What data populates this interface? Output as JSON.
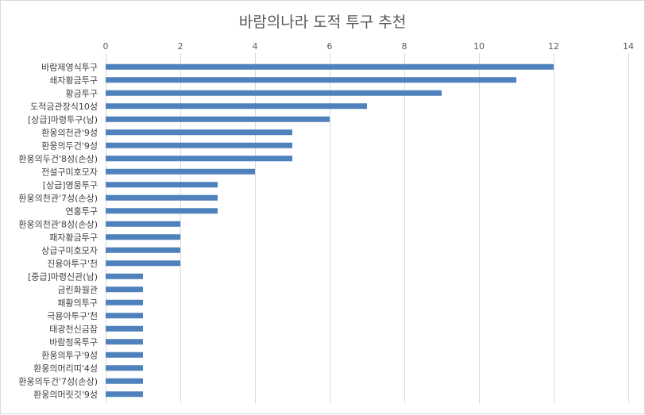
{
  "chart_data": {
    "type": "bar",
    "orientation": "horizontal",
    "title": "바람의나라 도적 투구 추천",
    "xlim": [
      0,
      14
    ],
    "x_ticks": [
      0,
      2,
      4,
      6,
      8,
      10,
      12,
      14
    ],
    "grid": true,
    "bar_color": "#4f81bd",
    "categories": [
      "바람제영식투구",
      "쇄자황금투구",
      "황금투구",
      "도적금관장식10성",
      "[상급]마령투구(남)",
      "환웅의천관'9성",
      "환웅의두건'9성",
      "환웅의두건'8성(손상)",
      "전설구미호모자",
      "[상급]영웅투구",
      "환웅의천관'7성(손상)",
      "연홍투구",
      "환웅의천관'8성(손상)",
      "패자황금투구",
      "상급구미호모자",
      "진용아투구'천",
      "[중급]마령신관(남)",
      "금린화월관",
      "패황의투구",
      "극용아투구'천",
      "태광천신금잠",
      "바람청옥투구",
      "환웅의투구'9성",
      "환웅의머리띠'4성",
      "환웅의두건'7성(손상)",
      "환웅의머릿깃'9성"
    ],
    "values": [
      12,
      11,
      9,
      7,
      6,
      5,
      5,
      5,
      4,
      3,
      3,
      3,
      2,
      2,
      2,
      2,
      1,
      1,
      1,
      1,
      1,
      1,
      1,
      1,
      1,
      1
    ]
  }
}
